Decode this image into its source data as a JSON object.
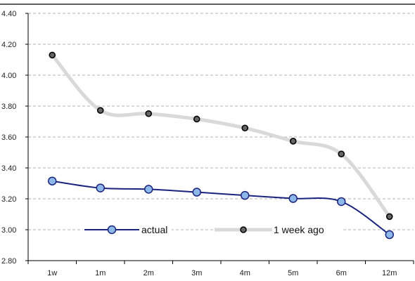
{
  "chart_data": {
    "type": "line",
    "categories": [
      "1w",
      "1m",
      "2m",
      "3m",
      "4m",
      "5m",
      "6m",
      "12m"
    ],
    "ylim": [
      2.8,
      4.4
    ],
    "yticks": [
      2.8,
      3.0,
      3.2,
      3.4,
      3.6,
      3.8,
      4.0,
      4.2,
      4.4
    ],
    "ytick_labels": [
      "2.80",
      "3.00",
      "3.20",
      "3.40",
      "3.60",
      "3.80",
      "4.00",
      "4.20",
      "4.40"
    ],
    "grid": "horizontal dashed",
    "legend_position": "bottom-center inside",
    "series": [
      {
        "name": "actual",
        "values": [
          3.315,
          3.27,
          3.262,
          3.243,
          3.222,
          3.202,
          3.182,
          2.968
        ],
        "line_color": "#1a237e",
        "marker_fill": "#8fb8ea",
        "marker_stroke": "#1a237e"
      },
      {
        "name": "1 week ago",
        "values": [
          4.13,
          3.772,
          3.751,
          3.716,
          3.658,
          3.573,
          3.49,
          3.085
        ],
        "line_color": "#d9d9d9",
        "marker_fill": "#666666",
        "marker_stroke": "#000000"
      }
    ]
  }
}
